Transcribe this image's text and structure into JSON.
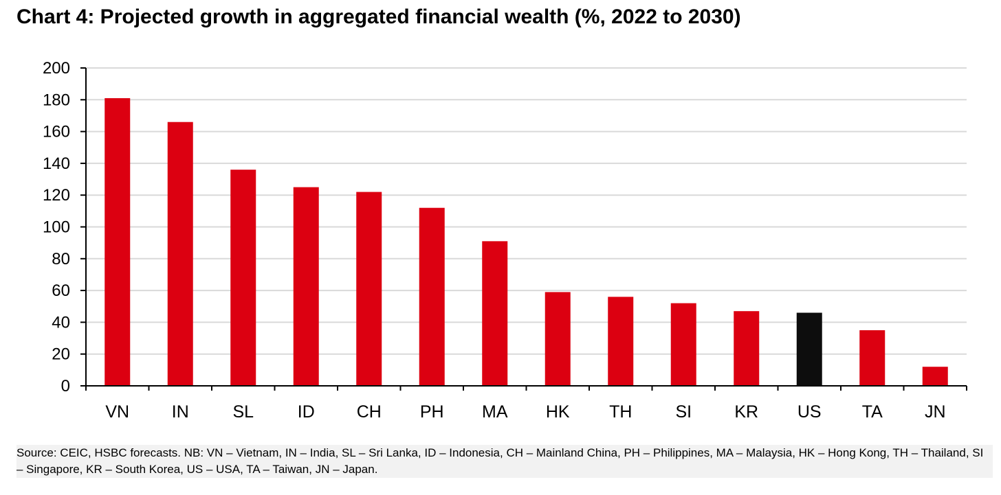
{
  "chart_data": {
    "type": "bar",
    "title": "Chart 4: Projected growth in aggregated financial wealth (%, 2022 to 2030)",
    "categories": [
      "VN",
      "IN",
      "SL",
      "ID",
      "CH",
      "PH",
      "MA",
      "HK",
      "TH",
      "SI",
      "KR",
      "US",
      "TA",
      "JN"
    ],
    "values": [
      181,
      166,
      136,
      125,
      122,
      112,
      91,
      59,
      56,
      52,
      47,
      46,
      35,
      12
    ],
    "ylim": [
      0,
      200
    ],
    "yticks": [
      0,
      20,
      40,
      60,
      80,
      100,
      120,
      140,
      160,
      180,
      200
    ],
    "xlabel": "",
    "ylabel": "",
    "grid": true,
    "colors": {
      "bar": "#dc0011",
      "highlight": "#0d0d0d",
      "grid": "#d9d9d9",
      "axis": "#000000"
    },
    "highlight_category": "US"
  },
  "source_note": "Source: CEIC, HSBC forecasts. NB: VN – Vietnam, IN – India, SL – Sri Lanka, ID – Indonesia, CH – Mainland China, PH – Philippines, MA – Malaysia, HK – Hong Kong, TH – Thailand, SI – Singapore, KR – South Korea, US – USA, TA – Taiwan, JN – Japan."
}
